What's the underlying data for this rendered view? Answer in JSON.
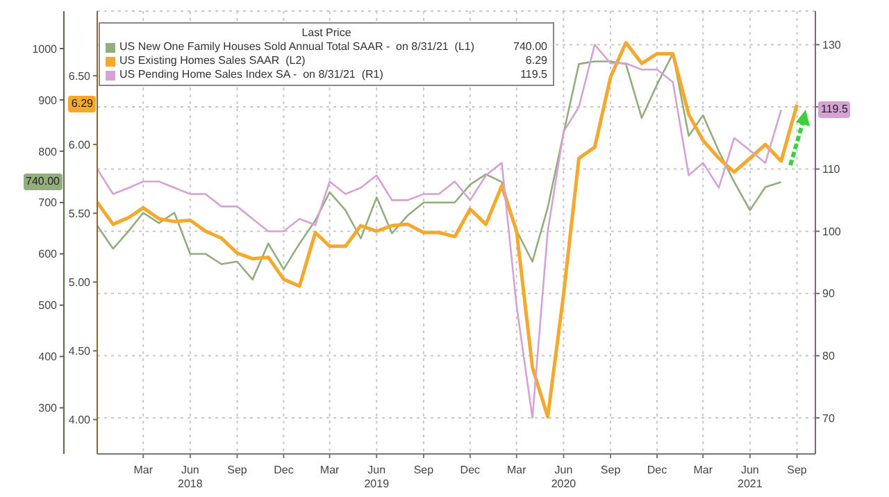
{
  "chart_data": {
    "type": "line",
    "legend_title": "Last Price",
    "annotations": [
      "740.00",
      "6.29",
      "119.5"
    ],
    "legend": "top left",
    "grid": true,
    "marker": "none",
    "x": [
      "2017-12",
      "2018-01",
      "2018-02",
      "2018-03",
      "2018-04",
      "2018-05",
      "2018-06",
      "2018-07",
      "2018-08",
      "2018-09",
      "2018-10",
      "2018-11",
      "2018-12",
      "2019-01",
      "2019-02",
      "2019-03",
      "2019-04",
      "2019-05",
      "2019-06",
      "2019-07",
      "2019-08",
      "2019-09",
      "2019-10",
      "2019-11",
      "2019-12",
      "2020-01",
      "2020-02",
      "2020-03",
      "2020-04",
      "2020-05",
      "2020-06",
      "2020-07",
      "2020-08",
      "2020-09",
      "2020-10",
      "2020-11",
      "2020-12",
      "2021-01",
      "2021-02",
      "2021-03",
      "2021-04",
      "2021-05",
      "2021-06",
      "2021-07",
      "2021-08",
      "2021-09"
    ],
    "xlim": [
      "2017-12",
      "2021-10-07"
    ],
    "xticks": [
      {
        "value": "2018-03",
        "label": "Mar"
      },
      {
        "value": "2018-06",
        "label": "Jun\n2018"
      },
      {
        "value": "2018-09",
        "label": "Sep"
      },
      {
        "value": "2018-12",
        "label": "Dec"
      },
      {
        "value": "2019-03",
        "label": "Mar"
      },
      {
        "value": "2019-06",
        "label": "Jun\n2019"
      },
      {
        "value": "2019-09",
        "label": "Sep"
      },
      {
        "value": "2019-12",
        "label": "Dec"
      },
      {
        "value": "2020-03",
        "label": "Mar"
      },
      {
        "value": "2020-06",
        "label": "Jun\n2020"
      },
      {
        "value": "2020-09",
        "label": "Sep"
      },
      {
        "value": "2020-12",
        "label": "Dec"
      },
      {
        "value": "2021-03",
        "label": "Mar"
      },
      {
        "value": "2021-06",
        "label": "Jun\n2021"
      },
      {
        "value": "2021-09",
        "label": "Sep"
      }
    ],
    "ylim": [
      210,
      1073
    ],
    "yticks": [
      300,
      400,
      500,
      600,
      700,
      800,
      900,
      1000
    ],
    "y3lim": [
      3.75,
      6.97
    ],
    "y3ticks": [
      {
        "value": 4,
        "label": "4.00"
      },
      {
        "value": 4.5,
        "label": "4.50"
      },
      {
        "value": 5,
        "label": "5.00"
      },
      {
        "value": 5.5,
        "label": "5.50"
      },
      {
        "value": 6,
        "label": "6.00"
      },
      {
        "value": 6.5,
        "label": "6.50"
      }
    ],
    "y2lim": [
      64.2,
      135.4
    ],
    "y2ticks": [
      70,
      80,
      90,
      100,
      110,
      {
        "value": 120,
        "label": null
      },
      130
    ],
    "series": [
      {
        "name": "US New One Family Houses Sold Annual Total SAAR -  on 8/31/21  (L1)",
        "color": "#93ad7c",
        "axis": "y",
        "values": [
          655,
          610,
          645,
          680,
          660,
          680,
          600,
          600,
          580,
          585,
          550,
          620,
          570,
          620,
          665,
          720,
          685,
          630,
          710,
          640,
          675,
          700,
          700,
          700,
          735,
          755,
          740,
          645,
          585,
          690,
          835,
          970,
          975,
          975,
          970,
          865,
          930,
          990,
          830,
          870,
          800,
          740,
          685,
          730,
          740,
          null
        ]
      },
      {
        "name": "US Existing Homes Sales SAAR  (L2)",
        "color": "#f4a82c",
        "axis": "y3",
        "values": [
          5.58,
          5.42,
          5.47,
          5.54,
          5.46,
          5.44,
          5.45,
          5.37,
          5.32,
          5.21,
          5.17,
          5.18,
          5.02,
          4.97,
          5.36,
          5.26,
          5.26,
          5.41,
          5.37,
          5.41,
          5.42,
          5.36,
          5.36,
          5.33,
          5.53,
          5.42,
          5.7,
          5.37,
          4.38,
          4.02,
          4.91,
          5.9,
          5.98,
          6.49,
          6.74,
          6.59,
          6.66,
          6.66,
          6.22,
          6.03,
          5.9,
          5.8,
          5.9,
          6.0,
          5.88,
          6.29
        ]
      },
      {
        "name": "US Pending Home Sales Index SA -  on 8/31/21  (R1)",
        "color": "#d6a2d6",
        "axis": "y2",
        "values": [
          110,
          106,
          107,
          108,
          108,
          107,
          106,
          106,
          104,
          104,
          102,
          100,
          100,
          102,
          101,
          108,
          106,
          107,
          109,
          105,
          105,
          106,
          106,
          108,
          105,
          109,
          111,
          88,
          70,
          100,
          116,
          120,
          130,
          127,
          127,
          126,
          126,
          124,
          109,
          111,
          107,
          115,
          113,
          111,
          119.5,
          null
        ]
      }
    ]
  }
}
